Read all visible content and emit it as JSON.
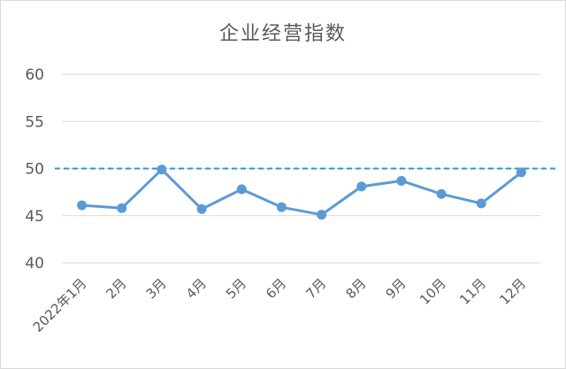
{
  "chart_data": {
    "type": "line",
    "title": "企业经营指数",
    "categories": [
      "2022年1月",
      "2月",
      "3月",
      "4月",
      "5月",
      "6月",
      "7月",
      "8月",
      "9月",
      "10月",
      "11月",
      "12月"
    ],
    "series": [
      {
        "values": [
          46.1,
          45.8,
          49.9,
          45.7,
          47.8,
          45.9,
          45.1,
          48.1,
          48.7,
          47.3,
          46.3,
          49.6
        ]
      }
    ],
    "reference_line": {
      "value": 50,
      "style": "dashed"
    },
    "yticks": [
      40,
      45,
      50,
      55,
      60
    ],
    "ylim": [
      40,
      60
    ],
    "grid": true,
    "legend": "none",
    "colors": {
      "series": "#5b9bd5",
      "reference": "#1f9ae0",
      "grid": "#d9d9d9",
      "text": "#595959"
    }
  }
}
